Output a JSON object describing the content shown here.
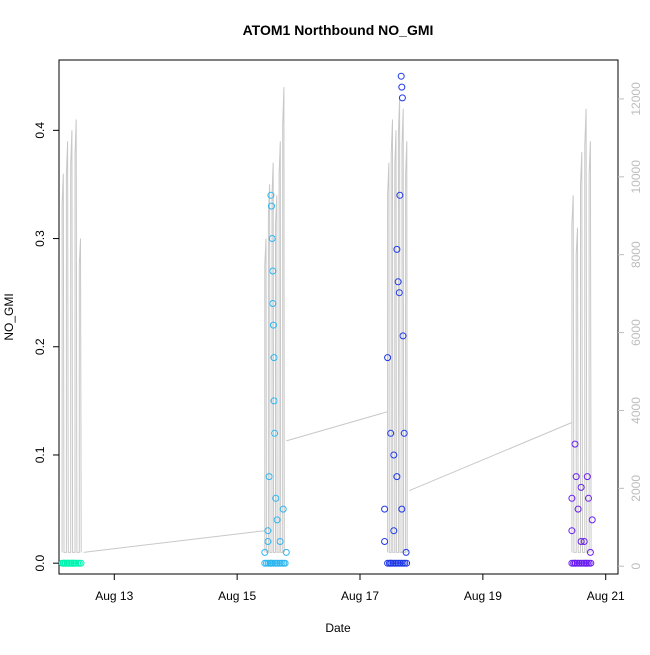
{
  "chart_data": {
    "type": "scatter",
    "title": "ATOM1 Northbound NO_GMI",
    "xlabel": "Date",
    "ylabel": "NO_GMI",
    "x_ticks": [
      "Aug 13",
      "Aug 15",
      "Aug 17",
      "Aug 19",
      "Aug 21"
    ],
    "y_ticks": [
      "0.0",
      "0.1",
      "0.2",
      "0.3",
      "0.4"
    ],
    "y_right_ticks": [
      "0",
      "2000",
      "4000",
      "6000",
      "8000",
      "10000",
      "12000"
    ],
    "xlim_days": [
      12.1,
      21.2
    ],
    "ylim": [
      -0.01,
      0.465
    ],
    "y_right_lim": [
      -200,
      13000
    ],
    "colors": {
      "day12": "#00f5b0",
      "day15": "#2fb6f0",
      "day17": "#1f39e6",
      "day20": "#6a1ff0",
      "altitude": "#c8c8c8"
    },
    "altitude_trace": {
      "segments": [
        {
          "day": 12.2,
          "peaks": [
            0.36,
            0.39,
            0.4,
            0.41,
            0.3
          ]
        },
        {
          "day": 15.5,
          "peaks": [
            0.3,
            0.35,
            0.37,
            0.34,
            0.39,
            0.44
          ]
        },
        {
          "day": 17.5,
          "peaks": [
            0.37,
            0.41,
            0.4,
            0.43,
            0.42,
            0.39
          ]
        },
        {
          "day": 20.5,
          "peaks": [
            0.34,
            0.31,
            0.38,
            0.42,
            0.39
          ]
        }
      ]
    },
    "series": [
      {
        "color_key": "day12",
        "day": 12.2,
        "points": [
          [
            12.17,
            0.0
          ],
          [
            12.2,
            0.0
          ],
          [
            12.23,
            0.0
          ],
          [
            12.26,
            0.0
          ],
          [
            12.29,
            0.0
          ],
          [
            12.32,
            0.0
          ],
          [
            12.35,
            0.0
          ]
        ]
      },
      {
        "color_key": "day15",
        "day": 15.5,
        "points": [
          [
            15.5,
            0.03
          ],
          [
            15.52,
            0.08
          ],
          [
            15.55,
            0.34
          ],
          [
            15.56,
            0.33
          ],
          [
            15.57,
            0.3
          ],
          [
            15.58,
            0.27
          ],
          [
            15.58,
            0.24
          ],
          [
            15.59,
            0.22
          ],
          [
            15.6,
            0.19
          ],
          [
            15.6,
            0.15
          ],
          [
            15.61,
            0.12
          ],
          [
            15.63,
            0.06
          ],
          [
            15.65,
            0.04
          ],
          [
            15.7,
            0.02
          ],
          [
            15.75,
            0.05
          ],
          [
            15.8,
            0.01
          ],
          [
            15.55,
            0.0
          ],
          [
            15.45,
            0.01
          ],
          [
            15.5,
            0.02
          ],
          [
            15.78,
            0.0
          ]
        ]
      },
      {
        "color_key": "day17",
        "day": 17.5,
        "points": [
          [
            17.4,
            0.05
          ],
          [
            17.45,
            0.19
          ],
          [
            17.5,
            0.12
          ],
          [
            17.55,
            0.1
          ],
          [
            17.6,
            0.29
          ],
          [
            17.62,
            0.26
          ],
          [
            17.64,
            0.25
          ],
          [
            17.65,
            0.34
          ],
          [
            17.67,
            0.45
          ],
          [
            17.68,
            0.44
          ],
          [
            17.69,
            0.43
          ],
          [
            17.7,
            0.21
          ],
          [
            17.72,
            0.12
          ],
          [
            17.5,
            0.0
          ],
          [
            17.55,
            0.03
          ],
          [
            17.6,
            0.08
          ],
          [
            17.4,
            0.02
          ],
          [
            17.68,
            0.05
          ],
          [
            17.75,
            0.01
          ]
        ]
      },
      {
        "color_key": "day20",
        "day": 20.5,
        "points": [
          [
            20.45,
            0.03
          ],
          [
            20.5,
            0.11
          ],
          [
            20.52,
            0.08
          ],
          [
            20.55,
            0.05
          ],
          [
            20.6,
            0.07
          ],
          [
            20.65,
            0.02
          ],
          [
            20.7,
            0.08
          ],
          [
            20.72,
            0.06
          ],
          [
            20.75,
            0.01
          ],
          [
            20.78,
            0.04
          ],
          [
            20.5,
            0.0
          ],
          [
            20.6,
            0.02
          ],
          [
            20.45,
            0.06
          ],
          [
            20.68,
            0.0
          ]
        ]
      }
    ]
  }
}
